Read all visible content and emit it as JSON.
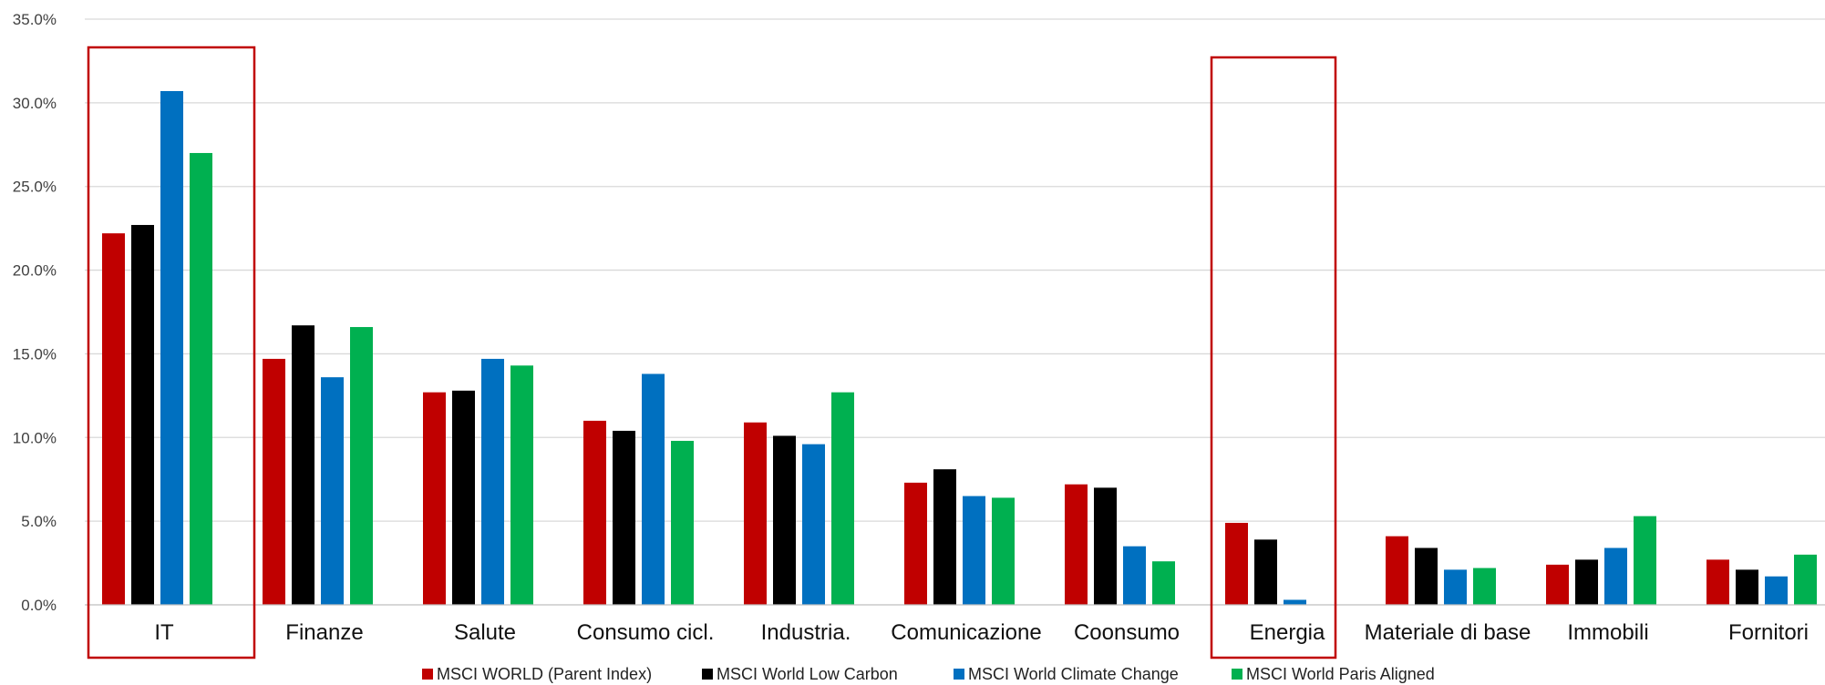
{
  "chart_data": {
    "type": "bar",
    "title": "",
    "xlabel": "",
    "ylabel": "",
    "ylim": [
      0,
      35
    ],
    "ytick_step": 5,
    "ytick_format": "percent_1dp",
    "grid": true,
    "legend_position": "bottom",
    "categories": [
      "IT",
      "Finanze",
      "Salute",
      "Consumo cicl.",
      "Industria.",
      "Comunicazione",
      "Coonsumo",
      "Energia",
      "Materiale di base",
      "Immobili",
      "Fornitori"
    ],
    "highlighted_categories": [
      "IT",
      "Energia"
    ],
    "highlight_color": "#C00000",
    "series": [
      {
        "name": "MSCI WORLD (Parent Index)",
        "color": "#C00000",
        "values": [
          22.2,
          14.7,
          12.7,
          11.0,
          10.9,
          7.3,
          7.2,
          4.9,
          4.1,
          2.4,
          2.7
        ]
      },
      {
        "name": "MSCI World Low Carbon",
        "color": "#000000",
        "values": [
          22.7,
          16.7,
          12.8,
          10.4,
          10.1,
          8.1,
          7.0,
          3.9,
          3.4,
          2.7,
          2.1
        ]
      },
      {
        "name": "MSCI World Climate Change",
        "color": "#0070C0",
        "values": [
          30.7,
          13.6,
          14.7,
          13.8,
          9.6,
          6.5,
          3.5,
          0.3,
          2.1,
          3.4,
          1.7
        ]
      },
      {
        "name": "MSCI World Paris Aligned",
        "color": "#00B050",
        "values": [
          27.0,
          16.6,
          14.3,
          9.8,
          12.7,
          6.4,
          2.6,
          0.0,
          2.2,
          5.3,
          3.0
        ]
      }
    ]
  }
}
